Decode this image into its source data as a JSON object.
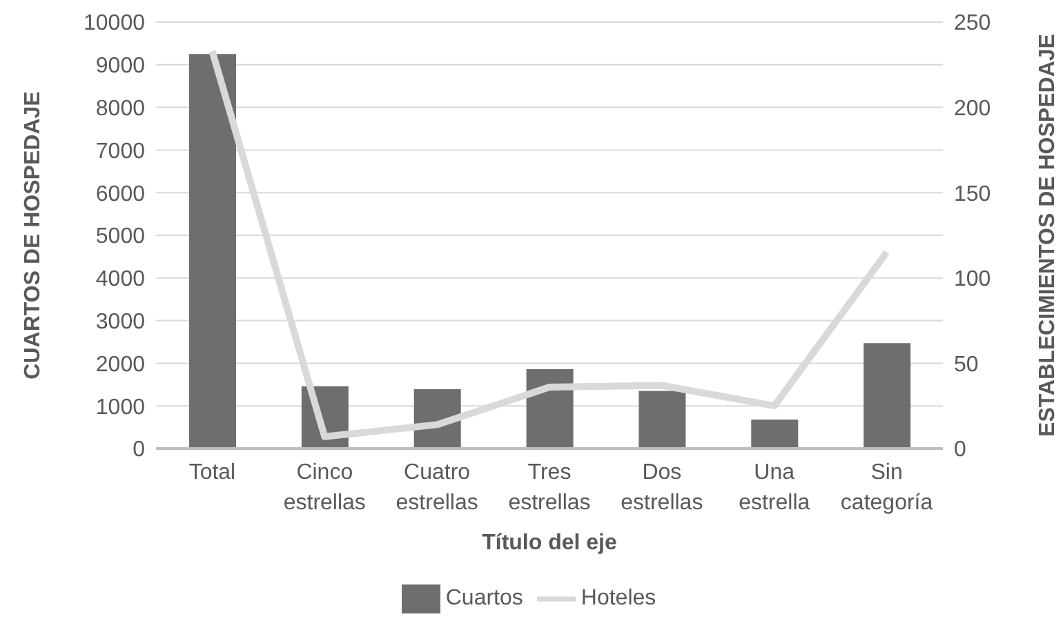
{
  "chart_data": {
    "type": "bar",
    "xlabel": "Título del eje",
    "ylabel": "CUARTOS DE HOSPEDAJE",
    "y2label": "ESTABLECIMIENTOS DE HOSPEDAJE",
    "categories": [
      "Total",
      "Cinco estrellas",
      "Cuatro estrellas",
      "Tres estrellas",
      "Dos estrellas",
      "Una estrella",
      "Sin categoría"
    ],
    "series": [
      {
        "name": "Cuartos",
        "color": "#6e6e6e",
        "values": [
          9250,
          1460,
          1390,
          1860,
          1350,
          680,
          2470
        ]
      },
      {
        "name": "Hoteles",
        "type": "line",
        "axis": "y2",
        "color": "#d9d9d9",
        "values": [
          233,
          7,
          14,
          36,
          37,
          25,
          115
        ]
      }
    ],
    "ylim": [
      0,
      10000
    ],
    "yticks": [
      0,
      1000,
      2000,
      3000,
      4000,
      5000,
      6000,
      7000,
      8000,
      9000,
      10000
    ],
    "y2lim": [
      0,
      250
    ],
    "y2ticks": [
      0,
      50,
      100,
      150,
      200,
      250
    ],
    "grid": "y",
    "legend": "bottom",
    "marker": "none"
  }
}
